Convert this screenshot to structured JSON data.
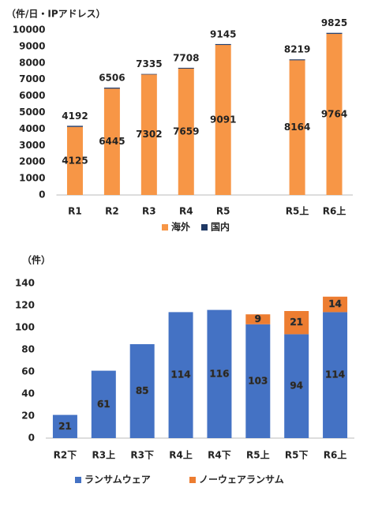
{
  "chart_data": [
    {
      "type": "bar",
      "stacked": true,
      "y_unit_label": "（件/日・IPアドレス）",
      "categories": [
        "R1",
        "R2",
        "R3",
        "R4",
        "R5",
        null,
        "R5上",
        "R6上"
      ],
      "series": [
        {
          "name": "海外",
          "color": "#f79646",
          "show_labels": true,
          "values": [
            4125,
            6445,
            7302,
            7659,
            9091,
            null,
            8164,
            9764
          ]
        },
        {
          "name": "国内",
          "color": "#1f3864",
          "show_labels": false,
          "values": [
            67,
            61,
            33,
            49,
            54,
            null,
            55,
            61
          ]
        }
      ],
      "totals": [
        4192,
        6506,
        7335,
        7708,
        9145,
        null,
        8219,
        9825
      ],
      "ylim": [
        0,
        10000
      ],
      "yticks": [
        0,
        1000,
        2000,
        3000,
        4000,
        5000,
        6000,
        7000,
        8000,
        9000,
        10000
      ],
      "grid": false,
      "legend": "bottom"
    },
    {
      "type": "bar",
      "stacked": true,
      "y_unit_label": "（件）",
      "categories": [
        "R2下",
        "R3上",
        "R3下",
        "R4上",
        "R4下",
        "R5上",
        "R5下",
        "R6上"
      ],
      "series": [
        {
          "name": "ランサムウェア",
          "color": "#4472c4",
          "show_labels": true,
          "values": [
            21,
            61,
            85,
            114,
            116,
            103,
            94,
            114
          ]
        },
        {
          "name": "ノーウェアランサム",
          "color": "#ed7d31",
          "show_labels": true,
          "values": [
            null,
            null,
            null,
            null,
            null,
            9,
            21,
            14
          ]
        }
      ],
      "ylim": [
        0,
        140
      ],
      "yticks": [
        0,
        20,
        40,
        60,
        80,
        100,
        120,
        140
      ],
      "grid": false,
      "legend": "bottom"
    }
  ]
}
